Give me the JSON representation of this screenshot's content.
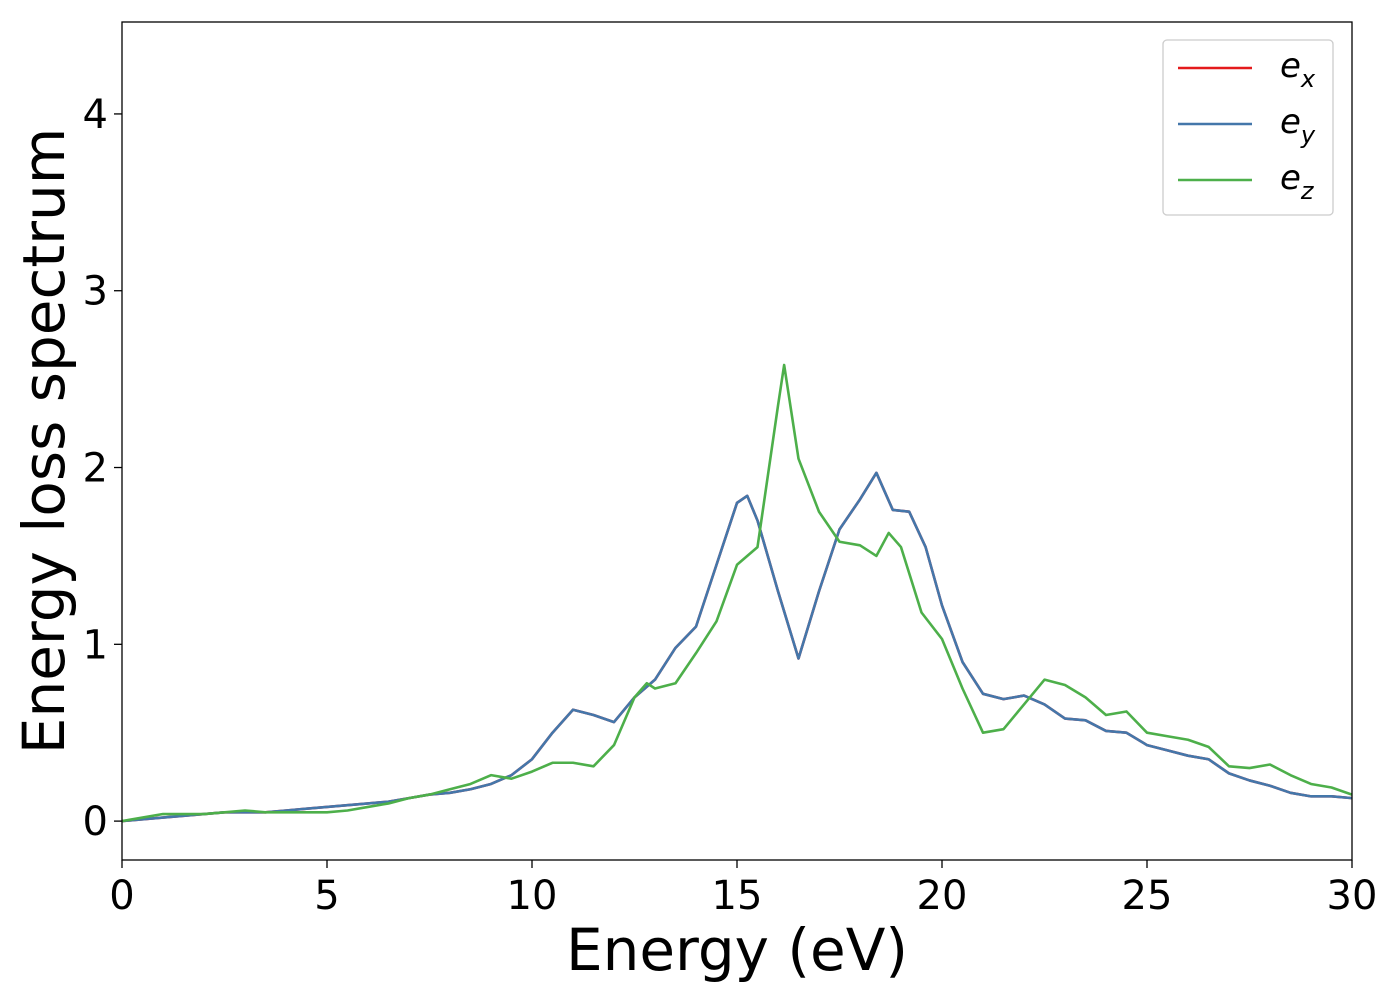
{
  "chart_data": {
    "type": "line",
    "title": "",
    "xlabel": "Energy (eV)",
    "ylabel": "Energy loss spectrum",
    "xlim": [
      0,
      30
    ],
    "ylim": [
      -0.22,
      4.52
    ],
    "xticks": [
      0,
      5,
      10,
      15,
      20,
      25,
      30
    ],
    "xtick_labels": [
      "0",
      "5",
      "10",
      "15",
      "20",
      "25",
      "30"
    ],
    "yticks": [
      0,
      1,
      2,
      3,
      4
    ],
    "ytick_labels": [
      "0",
      "1",
      "2",
      "3",
      "4"
    ],
    "grid": false,
    "legend_position": "top-right",
    "series": [
      {
        "name": "e_x",
        "legend_base": "e",
        "legend_sub": "x",
        "color": "#e41a1c",
        "x": [
          0,
          0.5,
          1,
          1.5,
          2,
          2.5,
          3,
          3.5,
          4,
          4.5,
          5,
          5.5,
          6,
          6.5,
          7,
          7.5,
          8,
          8.5,
          9,
          9.5,
          10,
          10.5,
          11,
          11.5,
          12,
          12.5,
          13,
          13.5,
          14,
          14.5,
          15,
          15.25,
          15.5,
          16,
          16.5,
          17,
          17.5,
          18,
          18.4,
          18.8,
          19.2,
          19.6,
          20,
          20.5,
          21,
          21.5,
          22,
          22.5,
          23,
          23.5,
          24,
          24.5,
          25,
          25.5,
          26,
          26.5,
          27,
          27.5,
          28,
          28.5,
          29,
          29.5,
          30
        ],
        "y": [
          0,
          0.01,
          0.02,
          0.03,
          0.04,
          0.05,
          0.05,
          0.05,
          0.06,
          0.07,
          0.08,
          0.09,
          0.1,
          0.11,
          0.13,
          0.15,
          0.16,
          0.18,
          0.21,
          0.26,
          0.35,
          0.5,
          0.63,
          0.6,
          0.56,
          0.7,
          0.8,
          0.98,
          1.1,
          1.45,
          1.8,
          1.84,
          1.7,
          1.3,
          0.92,
          1.3,
          1.65,
          1.82,
          1.97,
          1.76,
          1.75,
          1.55,
          1.22,
          0.9,
          0.72,
          0.69,
          0.71,
          0.66,
          0.58,
          0.57,
          0.51,
          0.5,
          0.43,
          0.4,
          0.37,
          0.35,
          0.27,
          0.23,
          0.2,
          0.16,
          0.14,
          0.14,
          0.13
        ]
      },
      {
        "name": "e_y",
        "legend_base": "e",
        "legend_sub": "y",
        "color": "#4477aa",
        "x": [
          0,
          0.5,
          1,
          1.5,
          2,
          2.5,
          3,
          3.5,
          4,
          4.5,
          5,
          5.5,
          6,
          6.5,
          7,
          7.5,
          8,
          8.5,
          9,
          9.5,
          10,
          10.5,
          11,
          11.5,
          12,
          12.5,
          13,
          13.5,
          14,
          14.5,
          15,
          15.25,
          15.5,
          16,
          16.5,
          17,
          17.5,
          18,
          18.4,
          18.8,
          19.2,
          19.6,
          20,
          20.5,
          21,
          21.5,
          22,
          22.5,
          23,
          23.5,
          24,
          24.5,
          25,
          25.5,
          26,
          26.5,
          27,
          27.5,
          28,
          28.5,
          29,
          29.5,
          30
        ],
        "y": [
          0,
          0.01,
          0.02,
          0.03,
          0.04,
          0.05,
          0.05,
          0.05,
          0.06,
          0.07,
          0.08,
          0.09,
          0.1,
          0.11,
          0.13,
          0.15,
          0.16,
          0.18,
          0.21,
          0.26,
          0.35,
          0.5,
          0.63,
          0.6,
          0.56,
          0.7,
          0.8,
          0.98,
          1.1,
          1.45,
          1.8,
          1.84,
          1.7,
          1.3,
          0.92,
          1.3,
          1.65,
          1.82,
          1.97,
          1.76,
          1.75,
          1.55,
          1.22,
          0.9,
          0.72,
          0.69,
          0.71,
          0.66,
          0.58,
          0.57,
          0.51,
          0.5,
          0.43,
          0.4,
          0.37,
          0.35,
          0.27,
          0.23,
          0.2,
          0.16,
          0.14,
          0.14,
          0.13
        ]
      },
      {
        "name": "e_z",
        "legend_base": "e",
        "legend_sub": "z",
        "color": "#4daf4a",
        "x": [
          0,
          0.5,
          1,
          1.5,
          2,
          2.5,
          3,
          3.5,
          4,
          4.5,
          5,
          5.5,
          6,
          6.5,
          7,
          7.5,
          8,
          8.5,
          9,
          9.5,
          10,
          10.5,
          11,
          11.5,
          12,
          12.5,
          12.8,
          13,
          13.5,
          14,
          14.5,
          15,
          15.5,
          16,
          16.15,
          16.5,
          17,
          17.5,
          18,
          18.4,
          18.7,
          19,
          19.5,
          20,
          20.5,
          21,
          21.5,
          22,
          22.5,
          23,
          23.5,
          24,
          24.5,
          25,
          25.5,
          26,
          26.5,
          27,
          27.5,
          28,
          28.5,
          29,
          29.5,
          30
        ],
        "y": [
          0,
          0.02,
          0.04,
          0.04,
          0.04,
          0.05,
          0.06,
          0.05,
          0.05,
          0.05,
          0.05,
          0.06,
          0.08,
          0.1,
          0.13,
          0.15,
          0.18,
          0.21,
          0.26,
          0.24,
          0.28,
          0.33,
          0.33,
          0.31,
          0.43,
          0.7,
          0.78,
          0.75,
          0.78,
          0.95,
          1.13,
          1.45,
          1.55,
          2.35,
          2.58,
          2.05,
          1.75,
          1.58,
          1.56,
          1.5,
          1.63,
          1.55,
          1.18,
          1.03,
          0.75,
          0.5,
          0.52,
          0.66,
          0.8,
          0.77,
          0.7,
          0.6,
          0.62,
          0.5,
          0.48,
          0.46,
          0.42,
          0.31,
          0.3,
          0.32,
          0.26,
          0.21,
          0.19,
          0.15
        ]
      }
    ]
  }
}
